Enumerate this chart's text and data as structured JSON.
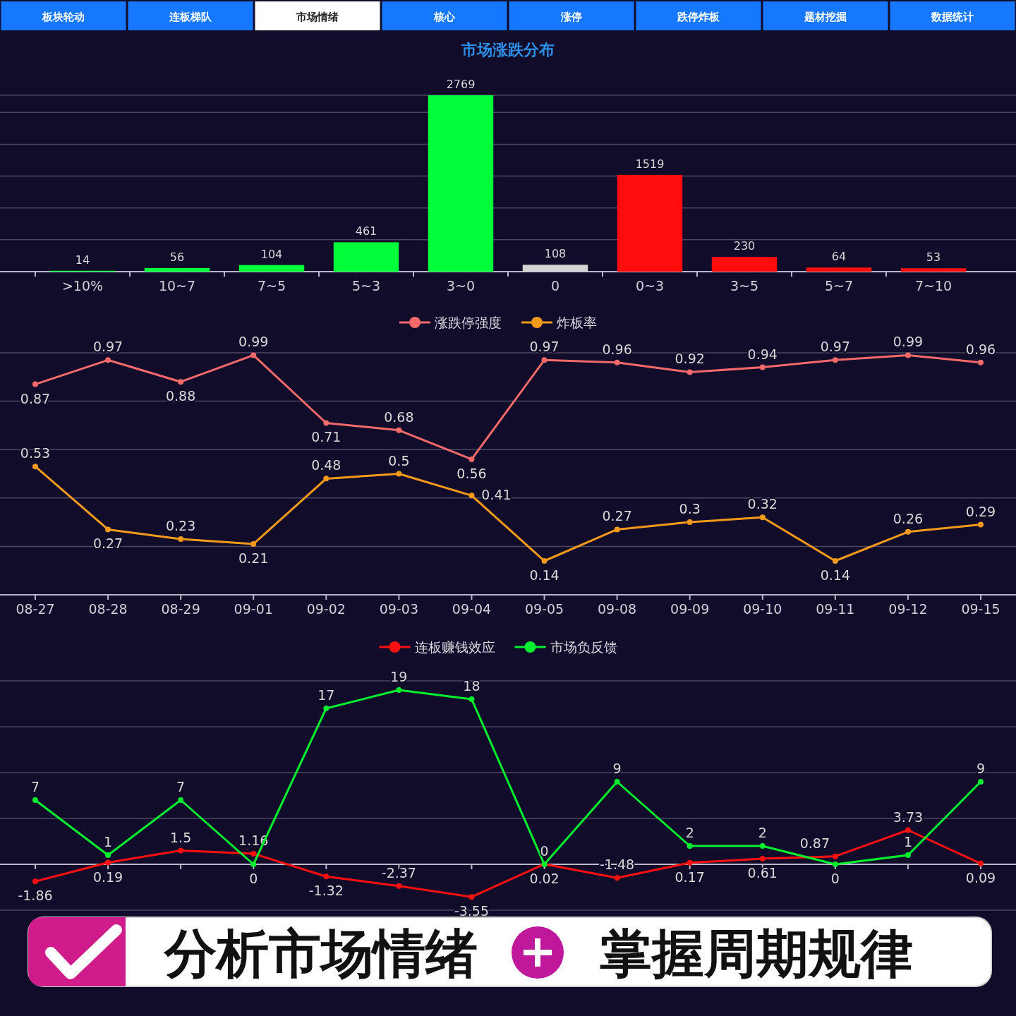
{
  "chart_data": [
    {
      "type": "bar",
      "title": "市场涨跌分布",
      "categories": [
        ">10%",
        "10~7",
        "7~5",
        "5~3",
        "3~0",
        "0",
        "0~3",
        "3~5",
        "5~7",
        "7~10"
      ],
      "values": [
        14,
        56,
        104,
        461,
        2769,
        108,
        1519,
        230,
        64,
        53
      ],
      "colors": [
        "#00ff3a",
        "#00ff3a",
        "#00ff3a",
        "#00ff3a",
        "#00ff3a",
        "#d4d4d4",
        "#ff0d0d",
        "#ff0d0d",
        "#ff0d0d",
        "#ff0d0d"
      ],
      "ylim": [
        0,
        2769
      ],
      "yticks": [
        {
          "value": 0,
          "label": null
        },
        {
          "value": 500,
          "label": null
        },
        {
          "value": 1000,
          "label": null
        },
        {
          "value": 1500,
          "label": null
        },
        {
          "value": 2000,
          "label": null
        },
        {
          "value": 2500,
          "label": null
        },
        {
          "value": 2769,
          "label": null
        }
      ],
      "grid": "y",
      "data_labels": true,
      "tick_labels": "x",
      "annotations": [
        "板块轮动",
        "连板梯队",
        "市场情绪",
        "核心",
        "涨停",
        "跌停炸板",
        "题材挖掘",
        "数据统计"
      ]
    },
    {
      "type": "line",
      "categories": [
        "08-27",
        "08-28",
        "08-29",
        "09-01",
        "09-02",
        "09-03",
        "09-04",
        "09-05",
        "09-08",
        "09-09",
        "09-10",
        "09-11",
        "09-12",
        "09-15"
      ],
      "series": [
        {
          "name": "涨跌停强度",
          "color": "#f46a6a",
          "values": [
            0.87,
            0.97,
            0.88,
            0.99,
            0.71,
            0.68,
            0.56,
            0.97,
            0.96,
            0.92,
            0.94,
            0.97,
            0.99,
            0.96
          ]
        },
        {
          "name": "炸板率",
          "color": "#f39a1c",
          "values": [
            0.53,
            0.27,
            0.23,
            0.21,
            0.48,
            0.5,
            0.41,
            0.14,
            0.27,
            0.3,
            0.32,
            0.14,
            0.26,
            0.29
          ]
        }
      ],
      "ylim": [
        0,
        1
      ],
      "yticks": [
        {
          "value": 0,
          "label": null
        },
        {
          "value": 0.2,
          "label": null
        },
        {
          "value": 0.4,
          "label": null
        },
        {
          "value": 0.6,
          "label": null
        },
        {
          "value": 0.8,
          "label": null
        },
        {
          "value": 1,
          "label": null
        }
      ],
      "grid": "y",
      "legend": "top",
      "marker": "circle",
      "line_style": "solid",
      "data_labels": true,
      "tick_labels": "x"
    },
    {
      "type": "line",
      "categories": [
        null,
        null,
        null,
        null,
        null,
        null,
        null,
        null,
        null,
        null,
        null,
        null,
        null,
        null
      ],
      "series": [
        {
          "name": "连板赚钱效应",
          "color": "#ff1010",
          "values": [
            -1.86,
            0.19,
            1.5,
            1.16,
            -1.32,
            -2.37,
            -3.55,
            0.02,
            -1.48,
            0.17,
            0.61,
            0.87,
            3.73,
            0.09
          ]
        },
        {
          "name": "市场负反馈",
          "color": "#00f030",
          "values": [
            7,
            1,
            7,
            0,
            17,
            19,
            18,
            0,
            9,
            2,
            2,
            0,
            1,
            9
          ]
        }
      ],
      "ylim": [
        -5,
        20
      ],
      "yticks": [
        {
          "value": -5,
          "label": null
        },
        {
          "value": 0,
          "label": null
        },
        {
          "value": 5,
          "label": null
        },
        {
          "value": 10,
          "label": null
        },
        {
          "value": 15,
          "label": null
        },
        {
          "value": 20,
          "label": null
        }
      ],
      "grid": "y",
      "legend": "top",
      "marker": "circle",
      "line_style": "solid",
      "data_labels": true,
      "tick_labels": false,
      "annotations": [
        "分析市场情绪",
        "掌握周期规律"
      ]
    }
  ]
}
